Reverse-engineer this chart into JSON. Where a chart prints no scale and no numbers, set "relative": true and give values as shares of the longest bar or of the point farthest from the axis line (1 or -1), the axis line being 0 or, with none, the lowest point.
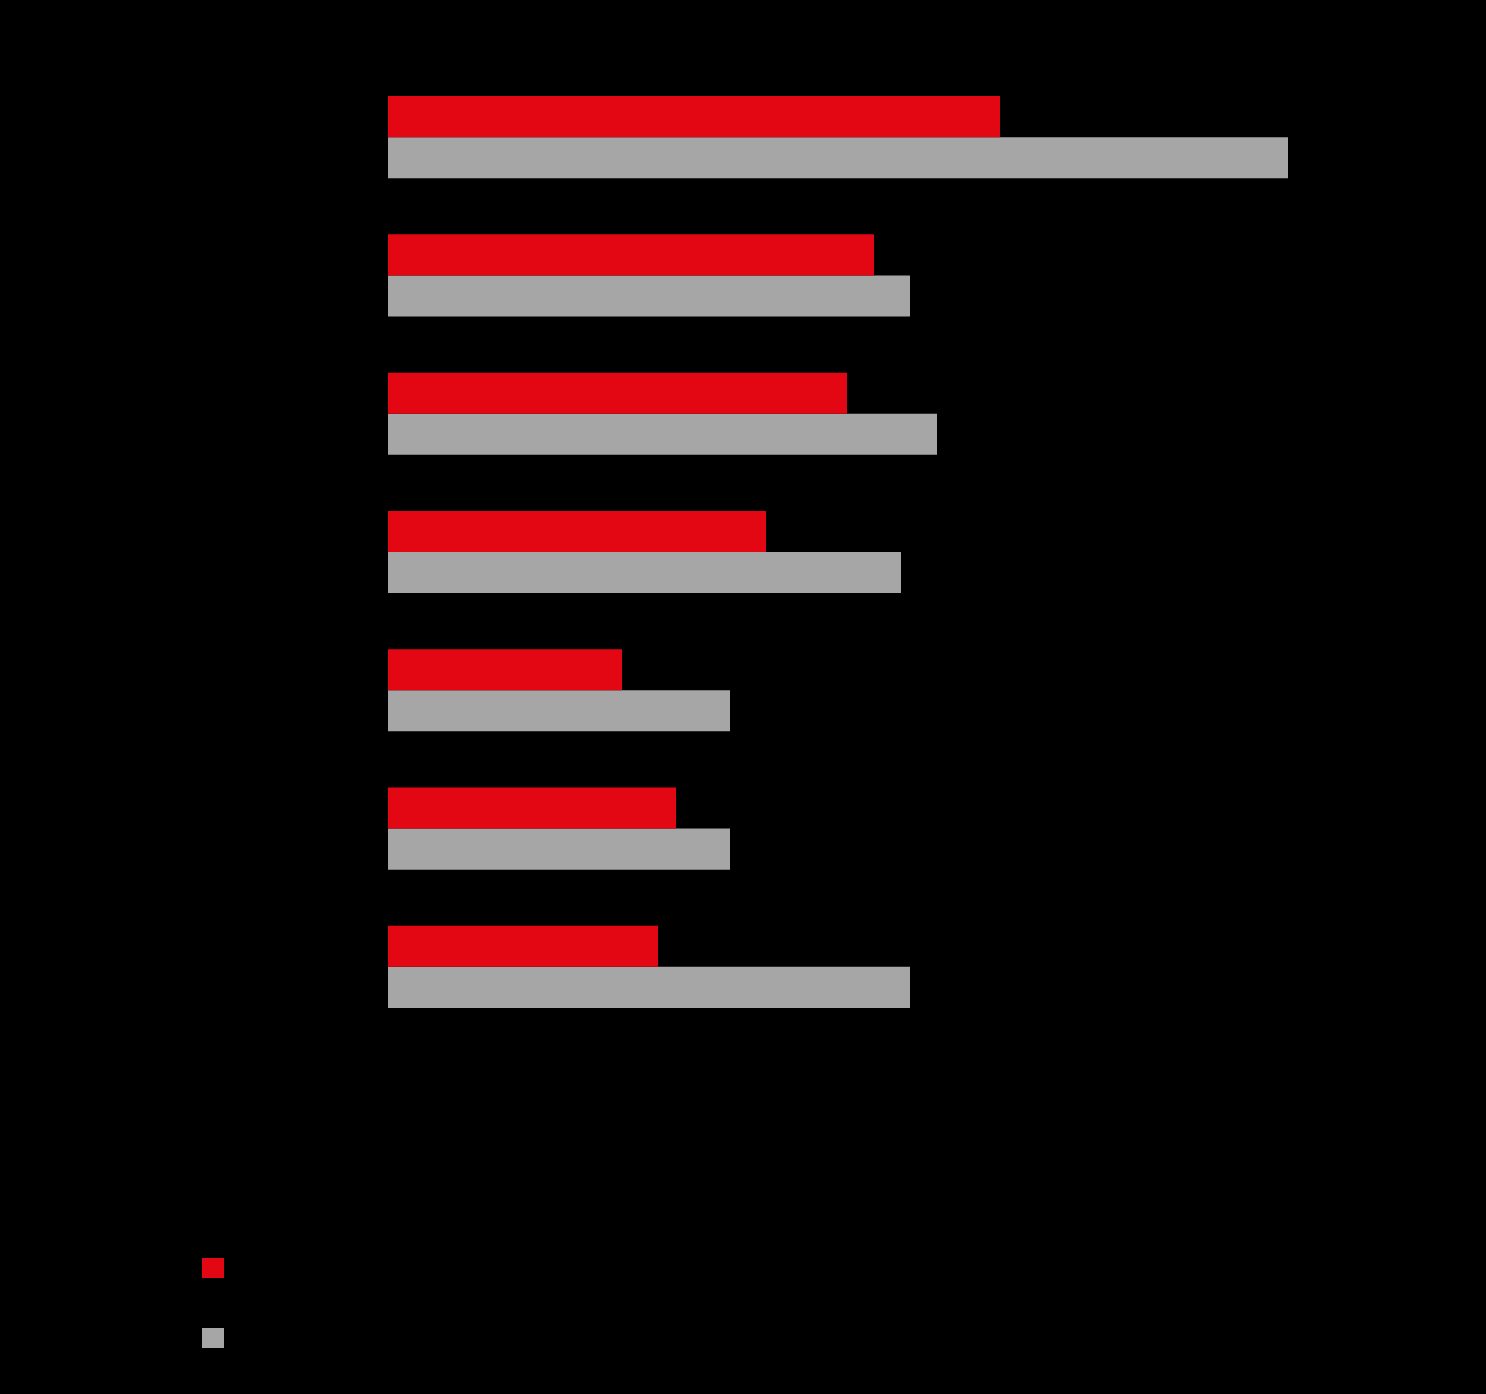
{
  "chart_data": {
    "type": "bar",
    "orientation": "horizontal",
    "relative": true,
    "categories": [
      null,
      null,
      null,
      null,
      null,
      null,
      null
    ],
    "series": [
      {
        "color": "#e30613",
        "values": [
          0.68,
          0.54,
          0.51,
          0.42,
          0.26,
          0.32,
          0.3
        ]
      },
      {
        "color": "#a6a6a6",
        "values": [
          1,
          0.58,
          0.61,
          0.57,
          0.38,
          0.38,
          0.58
        ]
      }
    ]
  }
}
